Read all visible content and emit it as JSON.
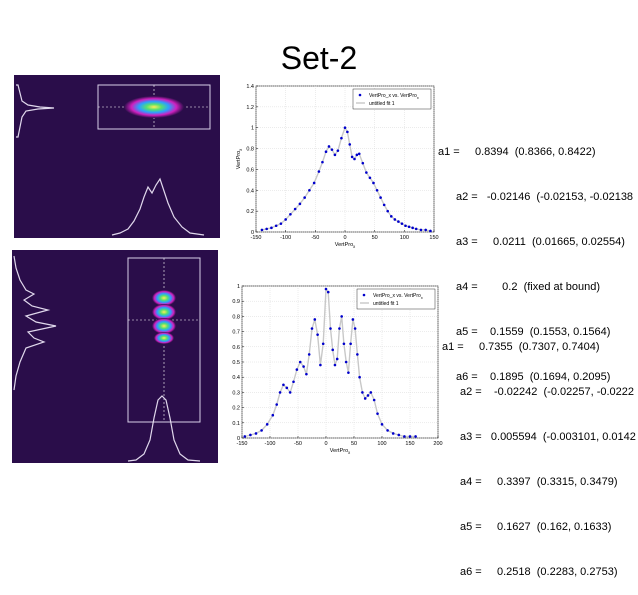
{
  "slide_title": "Set-2",
  "chart_data": [
    {
      "type": "scatter",
      "title": "",
      "xlabel": "VertPro_x",
      "ylabel": "VertPro_x",
      "xlim": [
        -150,
        150
      ],
      "ylim": [
        0,
        1.4
      ],
      "x_ticks": [
        "-150",
        "-100",
        "-50",
        "0",
        "50",
        "100",
        "150"
      ],
      "y_ticks": [
        "0",
        "0.2",
        "0.4",
        "0.6",
        "0.8",
        "1",
        "1.2",
        "1.4"
      ],
      "legend_position": "top-right",
      "legend": [
        "VertPro_x vs. VertPro_x",
        "untitled fit 1"
      ],
      "grid": true,
      "x": [
        -140,
        -132,
        -124,
        -116,
        -108,
        -100,
        -92,
        -84,
        -76,
        -68,
        -60,
        -52,
        -44,
        -38,
        -32,
        -27,
        -22,
        -17,
        -12,
        -6,
        0,
        4,
        8,
        12,
        16,
        20,
        24,
        30,
        36,
        42,
        48,
        54,
        60,
        66,
        72,
        78,
        84,
        90,
        96,
        102,
        108,
        114,
        120,
        128,
        136,
        144
      ],
      "y": [
        0.02,
        0.03,
        0.04,
        0.06,
        0.08,
        0.12,
        0.17,
        0.22,
        0.27,
        0.33,
        0.4,
        0.47,
        0.58,
        0.67,
        0.77,
        0.82,
        0.79,
        0.74,
        0.78,
        0.9,
        1.0,
        0.96,
        0.84,
        0.72,
        0.7,
        0.74,
        0.75,
        0.66,
        0.57,
        0.52,
        0.47,
        0.4,
        0.33,
        0.26,
        0.2,
        0.15,
        0.12,
        0.1,
        0.08,
        0.06,
        0.05,
        0.04,
        0.03,
        0.02,
        0.02,
        0.01
      ]
    },
    {
      "type": "scatter",
      "title": "",
      "xlabel": "VertPro_x",
      "ylabel": "",
      "xlim": [
        -150,
        200
      ],
      "ylim": [
        0,
        1
      ],
      "x_ticks": [
        "-150",
        "-100",
        "-50",
        "0",
        "50",
        "100",
        "150",
        "200"
      ],
      "y_ticks": [
        "0",
        "0.1",
        "0.2",
        "0.3",
        "0.4",
        "0.5",
        "0.6",
        "0.7",
        "0.8",
        "0.9",
        "1"
      ],
      "legend_position": "top-right",
      "legend": [
        "VertPro_x vs. VertPro_x",
        "untitled fit 1"
      ],
      "grid": true,
      "x": [
        -145,
        -135,
        -125,
        -115,
        -105,
        -95,
        -88,
        -82,
        -76,
        -70,
        -64,
        -58,
        -52,
        -46,
        -40,
        -35,
        -30,
        -25,
        -20,
        -15,
        -10,
        -5,
        0,
        4,
        8,
        12,
        16,
        20,
        24,
        28,
        32,
        36,
        40,
        44,
        48,
        52,
        56,
        60,
        65,
        70,
        75,
        80,
        86,
        92,
        100,
        110,
        120,
        130,
        140,
        150,
        160
      ],
      "y": [
        0.01,
        0.02,
        0.03,
        0.05,
        0.09,
        0.15,
        0.22,
        0.3,
        0.35,
        0.33,
        0.3,
        0.37,
        0.45,
        0.5,
        0.47,
        0.42,
        0.55,
        0.72,
        0.78,
        0.68,
        0.48,
        0.62,
        0.98,
        0.96,
        0.72,
        0.58,
        0.48,
        0.52,
        0.72,
        0.8,
        0.62,
        0.5,
        0.43,
        0.62,
        0.78,
        0.72,
        0.55,
        0.4,
        0.3,
        0.26,
        0.28,
        0.3,
        0.25,
        0.16,
        0.09,
        0.05,
        0.03,
        0.02,
        0.01,
        0.01,
        0.01
      ]
    }
  ],
  "fit_params": [
    [
      {
        "name": "a1 =",
        "value": "0.8394  (0.8366, 0.8422)"
      },
      {
        "name": "a2 =",
        "value": "-0.02146  (-0.02153, -0.02138"
      },
      {
        "name": "a3 =",
        "value": "0.0211  (0.01665, 0.02554)"
      },
      {
        "name": "a4 =",
        "value": "0.2  (fixed at bound)"
      },
      {
        "name": "a5 =",
        "value": "0.1559  (0.1553, 0.1564)"
      },
      {
        "name": "a6 =",
        "value": "0.1895  (0.1694, 0.2095)"
      }
    ],
    [
      {
        "name": "a1 =",
        "value": "0.7355  (0.7307, 0.7404)"
      },
      {
        "name": "a2 =",
        "value": "-0.02242  (-0.02257, -0.0222"
      },
      {
        "name": "a3 =",
        "value": "0.005594  (-0.003101, 0.0142"
      },
      {
        "name": "a4 =",
        "value": "0.3397  (0.3315, 0.3479)"
      },
      {
        "name": "a5 =",
        "value": "0.1627  (0.162, 0.1633)"
      },
      {
        "name": "a6 =",
        "value": "0.2518  (0.2283, 0.2753)"
      }
    ]
  ],
  "colors": {
    "marker": "#0000cc",
    "fit_line": "#c8c8c8",
    "beam_background": "#2a0d4a",
    "profile_line": "#e0d8ec"
  }
}
